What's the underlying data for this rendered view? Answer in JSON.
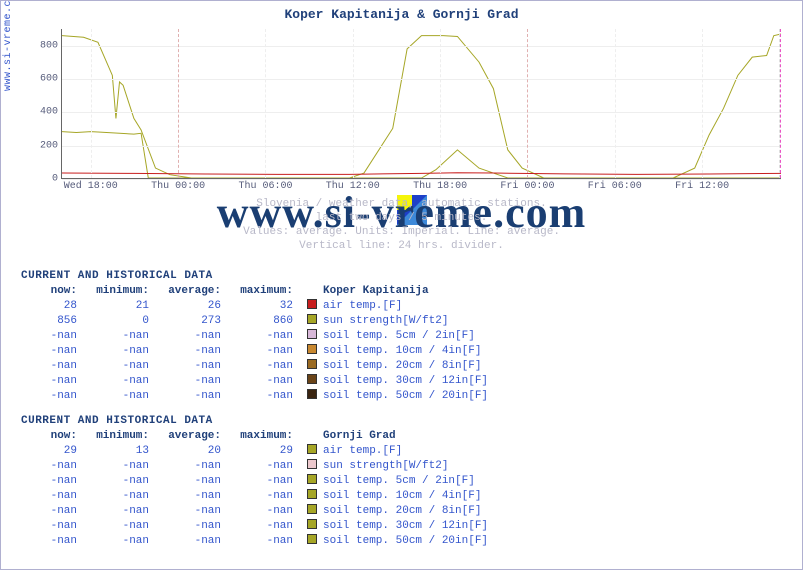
{
  "title": "Koper Kapitanija & Gornji Grad",
  "ylabel": "www.si-vreme.com",
  "watermark": "www.si-vreme.com",
  "caption_lines": [
    "Slovenia / weather data, automatic stations.",
    "last two days / 5 minutes.",
    "Values: average. Units: Imperial. Line: average.",
    "Vertical line: 24 hrs. divider."
  ],
  "chart": {
    "type": "line",
    "background_color": "#ffffff",
    "grid_color": "#eeeeee",
    "ylim": [
      0,
      900
    ],
    "yticks": [
      0,
      200,
      400,
      600,
      800
    ],
    "xticks": [
      "Wed 18:00",
      "Thu 00:00",
      "Thu 06:00",
      "Thu 12:00",
      "Thu 18:00",
      "Fri 00:00",
      "Fri 06:00",
      "Fri 12:00"
    ],
    "day_marker_color": "#e855c4",
    "series": [
      {
        "name": "sun strength",
        "color": "#a6a626",
        "line_width": 1,
        "points": [
          [
            0,
            860
          ],
          [
            0.03,
            850
          ],
          [
            0.05,
            820
          ],
          [
            0.07,
            620
          ],
          [
            0.075,
            360
          ],
          [
            0.08,
            580
          ],
          [
            0.085,
            560
          ],
          [
            0.1,
            360
          ],
          [
            0.11,
            290
          ],
          [
            0.13,
            60
          ],
          [
            0.15,
            20
          ],
          [
            0.18,
            0
          ],
          [
            0.4,
            0
          ],
          [
            0.42,
            30
          ],
          [
            0.46,
            300
          ],
          [
            0.48,
            780
          ],
          [
            0.5,
            860
          ],
          [
            0.53,
            860
          ],
          [
            0.55,
            855
          ],
          [
            0.58,
            700
          ],
          [
            0.6,
            540
          ],
          [
            0.62,
            170
          ],
          [
            0.64,
            60
          ],
          [
            0.67,
            0
          ],
          [
            0.85,
            0
          ],
          [
            0.88,
            60
          ],
          [
            0.9,
            260
          ],
          [
            0.92,
            420
          ],
          [
            0.94,
            620
          ],
          [
            0.96,
            730
          ],
          [
            0.98,
            740
          ],
          [
            0.99,
            860
          ],
          [
            1.0,
            870
          ]
        ]
      },
      {
        "name": "sun strength gg",
        "color": "#a6a626",
        "line_width": 1,
        "points": [
          [
            0,
            280
          ],
          [
            0.02,
            275
          ],
          [
            0.04,
            280
          ],
          [
            0.05,
            278
          ],
          [
            0.08,
            270
          ],
          [
            0.1,
            265
          ],
          [
            0.11,
            270
          ],
          [
            0.12,
            0
          ],
          [
            0.4,
            0
          ],
          [
            0.42,
            0
          ],
          [
            0.45,
            0
          ],
          [
            0.47,
            0
          ],
          [
            0.5,
            0
          ],
          [
            0.52,
            50
          ],
          [
            0.55,
            170
          ],
          [
            0.58,
            60
          ],
          [
            0.6,
            30
          ],
          [
            0.62,
            0
          ],
          [
            0.85,
            0
          ],
          [
            0.88,
            0
          ],
          [
            1.0,
            0
          ]
        ]
      },
      {
        "name": "air temp",
        "color": "#c81e1e",
        "line_width": 1,
        "points": [
          [
            0,
            30
          ],
          [
            0.1,
            28
          ],
          [
            0.2,
            24
          ],
          [
            0.3,
            22
          ],
          [
            0.4,
            22
          ],
          [
            0.5,
            28
          ],
          [
            0.55,
            32
          ],
          [
            0.6,
            30
          ],
          [
            0.7,
            25
          ],
          [
            0.8,
            22
          ],
          [
            0.9,
            24
          ],
          [
            1.0,
            28
          ]
        ]
      }
    ]
  },
  "tables": [
    {
      "title": "CURRENT AND HISTORICAL DATA",
      "station": "Koper Kapitanija",
      "headers": [
        "now:",
        "minimum:",
        "average:",
        "maximum:"
      ],
      "rows": [
        {
          "v": [
            "28",
            "21",
            "26",
            "32"
          ],
          "sw": "#c81e1e",
          "label": "air temp.[F]"
        },
        {
          "v": [
            "856",
            "0",
            "273",
            "860"
          ],
          "sw": "#a6a626",
          "label": "sun strength[W/ft2]"
        },
        {
          "v": [
            "-nan",
            "-nan",
            "-nan",
            "-nan"
          ],
          "sw": "#d8b8d8",
          "label": "soil temp. 5cm / 2in[F]"
        },
        {
          "v": [
            "-nan",
            "-nan",
            "-nan",
            "-nan"
          ],
          "sw": "#c88830",
          "label": "soil temp. 10cm / 4in[F]"
        },
        {
          "v": [
            "-nan",
            "-nan",
            "-nan",
            "-nan"
          ],
          "sw": "#9a6a22",
          "label": "soil temp. 20cm / 8in[F]"
        },
        {
          "v": [
            "-nan",
            "-nan",
            "-nan",
            "-nan"
          ],
          "sw": "#6a4418",
          "label": "soil temp. 30cm / 12in[F]"
        },
        {
          "v": [
            "-nan",
            "-nan",
            "-nan",
            "-nan"
          ],
          "sw": "#3a2410",
          "label": "soil temp. 50cm / 20in[F]"
        }
      ]
    },
    {
      "title": "CURRENT AND HISTORICAL DATA",
      "station": "Gornji Grad",
      "headers": [
        "now:",
        "minimum:",
        "average:",
        "maximum:"
      ],
      "rows": [
        {
          "v": [
            "29",
            "13",
            "20",
            "29"
          ],
          "sw": "#a6a626",
          "label": "air temp.[F]"
        },
        {
          "v": [
            "-nan",
            "-nan",
            "-nan",
            "-nan"
          ],
          "sw": "#ecc8cc",
          "label": "sun strength[W/ft2]"
        },
        {
          "v": [
            "-nan",
            "-nan",
            "-nan",
            "-nan"
          ],
          "sw": "#a6a626",
          "label": "soil temp. 5cm / 2in[F]"
        },
        {
          "v": [
            "-nan",
            "-nan",
            "-nan",
            "-nan"
          ],
          "sw": "#a6a626",
          "label": "soil temp. 10cm / 4in[F]"
        },
        {
          "v": [
            "-nan",
            "-nan",
            "-nan",
            "-nan"
          ],
          "sw": "#a6a626",
          "label": "soil temp. 20cm / 8in[F]"
        },
        {
          "v": [
            "-nan",
            "-nan",
            "-nan",
            "-nan"
          ],
          "sw": "#a6a626",
          "label": "soil temp. 30cm / 12in[F]"
        },
        {
          "v": [
            "-nan",
            "-nan",
            "-nan",
            "-nan"
          ],
          "sw": "#a6a626",
          "label": "soil temp. 50cm / 20in[F]"
        }
      ]
    }
  ]
}
